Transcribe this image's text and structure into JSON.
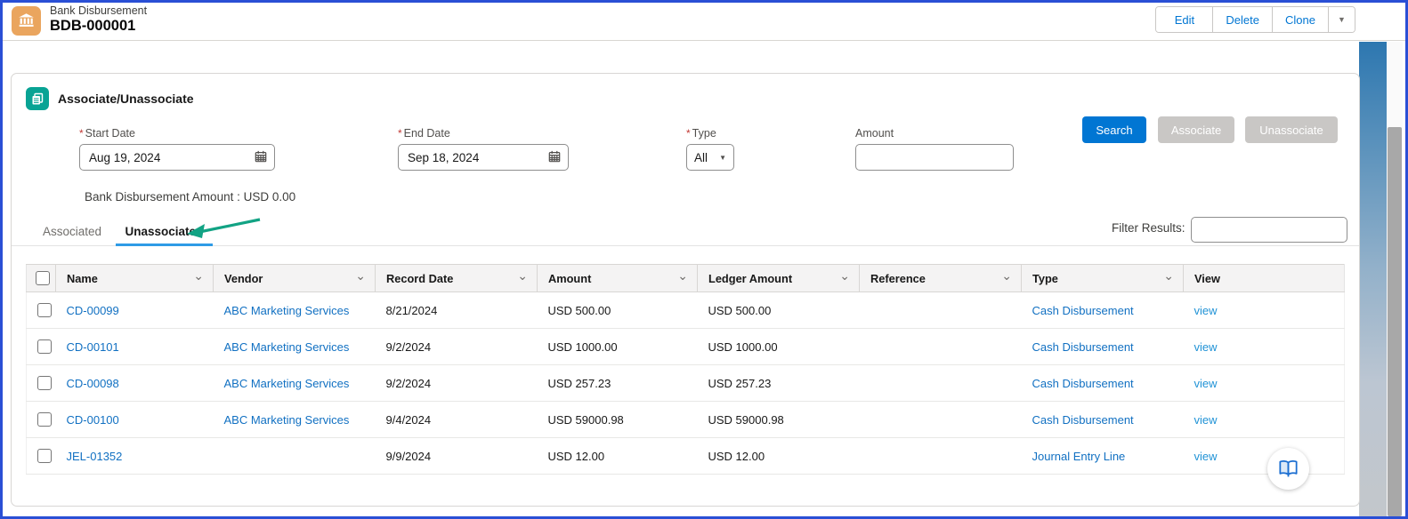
{
  "header": {
    "record_type": "Bank Disbursement",
    "record_name": "BDB-000001",
    "actions": [
      "Edit",
      "Delete",
      "Clone"
    ]
  },
  "icons": {
    "dropdown_caret": "▼",
    "select_caret": "▼",
    "chevron_down": "⌄",
    "bank_icon": "bank-building",
    "section_icon": "record-pages",
    "calendar_icon": "calendar",
    "book_icon": "open-book"
  },
  "section": {
    "title": "Associate/Unassociate",
    "required_marker": "*",
    "fields": {
      "start_date": {
        "label": "Start Date",
        "value": "Aug 19, 2024",
        "required": true
      },
      "end_date": {
        "label": "End Date",
        "value": "Sep 18, 2024",
        "required": true
      },
      "type": {
        "label": "Type",
        "value": "All",
        "required": true
      },
      "amount": {
        "label": "Amount",
        "value": "",
        "required": false
      }
    },
    "buttons": {
      "search": "Search",
      "associate": "Associate",
      "unassociate": "Unassociate"
    },
    "summary": "Bank Disbursement Amount : USD 0.00",
    "tabs": [
      {
        "label": "Associated",
        "active": false
      },
      {
        "label": "Unassociated",
        "active": true
      }
    ],
    "filter_label": "Filter Results:",
    "filter_value": ""
  },
  "table": {
    "columns": [
      {
        "key": "name",
        "label": "Name",
        "chevron": true
      },
      {
        "key": "vendor",
        "label": "Vendor",
        "chevron": true
      },
      {
        "key": "record_date",
        "label": "Record Date",
        "chevron": true
      },
      {
        "key": "amount",
        "label": "Amount",
        "chevron": true
      },
      {
        "key": "ledger_amount",
        "label": "Ledger Amount",
        "chevron": true
      },
      {
        "key": "reference",
        "label": "Reference",
        "chevron": true
      },
      {
        "key": "type",
        "label": "Type",
        "chevron": true
      },
      {
        "key": "view",
        "label": "View",
        "chevron": false
      }
    ],
    "rows": [
      {
        "name": "CD-00099",
        "vendor": "ABC Marketing Services",
        "record_date": "8/21/2024",
        "amount": "USD 500.00",
        "ledger_amount": "USD 500.00",
        "reference": "",
        "type": "Cash Disbursement",
        "view": "view"
      },
      {
        "name": "CD-00101",
        "vendor": "ABC Marketing Services",
        "record_date": "9/2/2024",
        "amount": "USD 1000.00",
        "ledger_amount": "USD 1000.00",
        "reference": "",
        "type": "Cash Disbursement",
        "view": "view"
      },
      {
        "name": "CD-00098",
        "vendor": "ABC Marketing Services",
        "record_date": "9/2/2024",
        "amount": "USD 257.23",
        "ledger_amount": "USD 257.23",
        "reference": "",
        "type": "Cash Disbursement",
        "view": "view"
      },
      {
        "name": "CD-00100",
        "vendor": "ABC Marketing Services",
        "record_date": "9/4/2024",
        "amount": "USD 59000.98",
        "ledger_amount": "USD 59000.98",
        "reference": "",
        "type": "Cash Disbursement",
        "view": "view"
      },
      {
        "name": "JEL-01352",
        "vendor": "",
        "record_date": "9/9/2024",
        "amount": "USD 12.00",
        "ledger_amount": "USD 12.00",
        "reference": "",
        "type": "Journal Entry Line",
        "view": "view"
      }
    ]
  },
  "colors": {
    "accent": "#0176d3",
    "link": "#1170c2",
    "view_link": "#2193d6",
    "entity_icon_bg": "#eaa55e",
    "section_icon_bg": "#08a394",
    "annotation_arrow": "#12a384",
    "disabled_button": "#c9c7c5",
    "tab_underline": "#2e9be6",
    "frame_border": "#2a4fd5"
  }
}
